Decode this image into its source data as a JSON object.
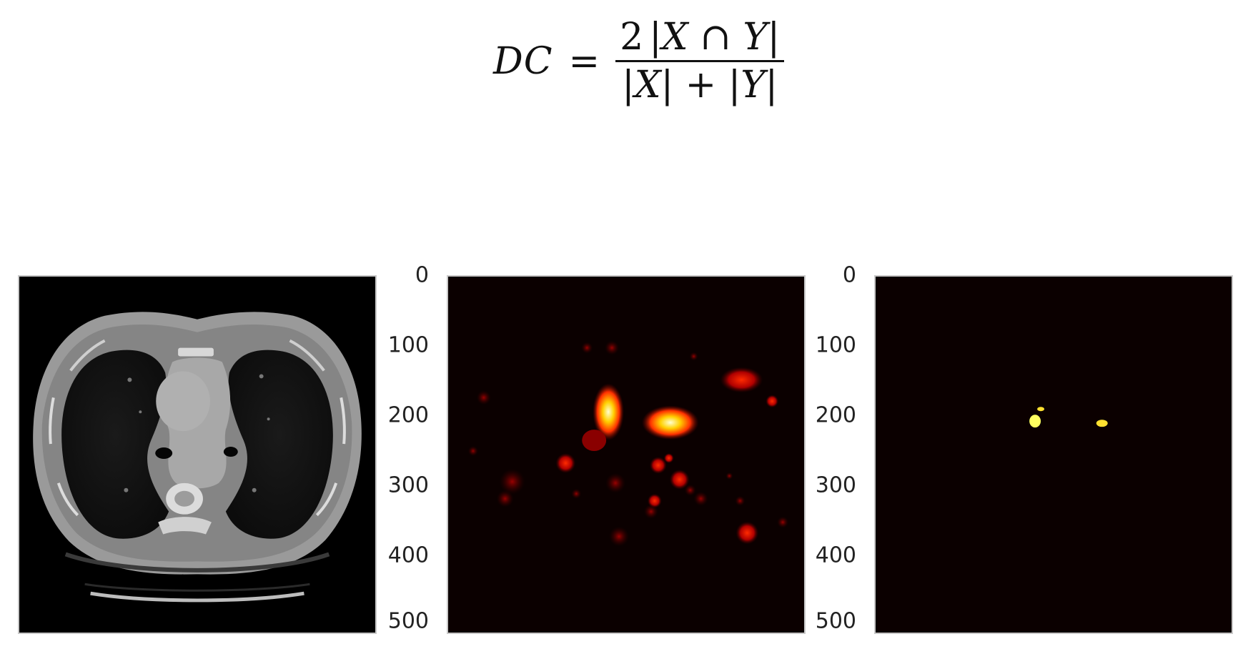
{
  "formula": {
    "lhs": "DC",
    "equals": "=",
    "numerator_coeff": "2",
    "numerator_expr": "|X ∩ Y|",
    "denominator": "|X| + |Y|"
  },
  "panels": {
    "ct": {
      "colormap": "gray"
    },
    "heatmap": {
      "colormap": "hot"
    },
    "mask": {
      "colormap": "hot"
    }
  },
  "y_ticks": [
    "0",
    "100",
    "200",
    "300",
    "400",
    "500"
  ],
  "y_tick_values": [
    0,
    100,
    200,
    300,
    400,
    500
  ],
  "axis_range": [
    0,
    512
  ]
}
